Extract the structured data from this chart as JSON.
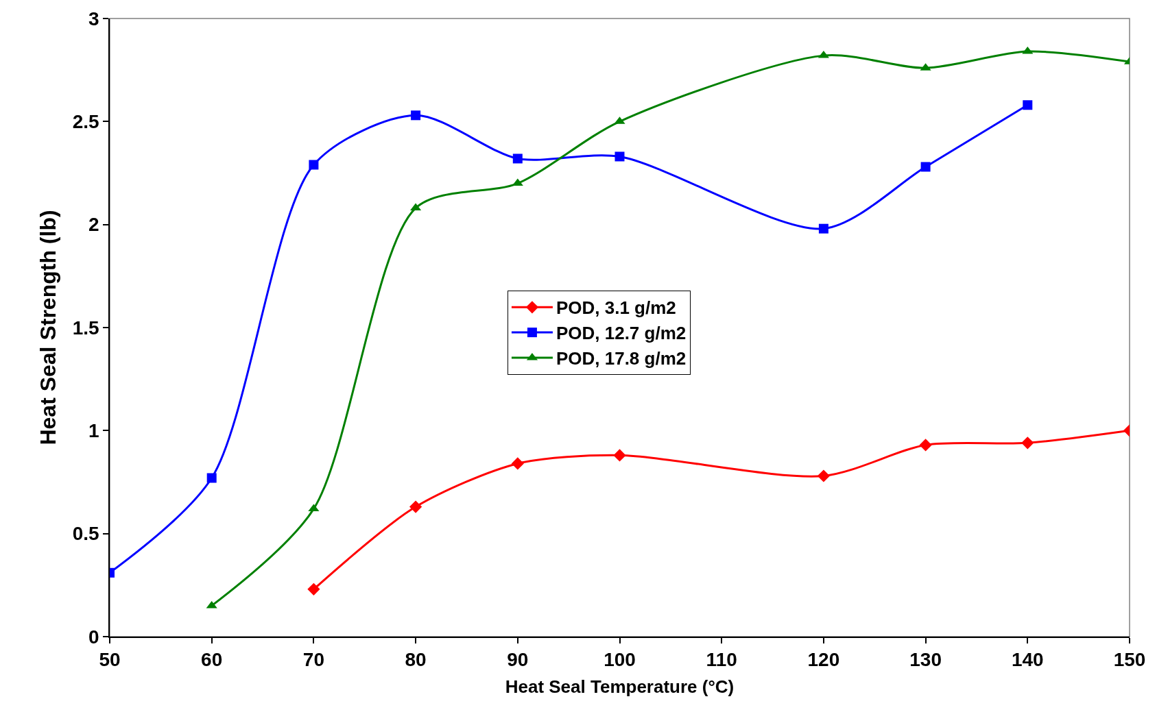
{
  "chart_data": {
    "type": "line",
    "xlabel": "Heat Seal Temperature (°C)",
    "ylabel": "Heat Seal Strength (lb)",
    "x": [
      50,
      60,
      70,
      80,
      90,
      100,
      120,
      130,
      140,
      150
    ],
    "series": [
      {
        "name": "POD, 3.1 g/m2",
        "color": "#ff0000",
        "marker": "diamond",
        "values": [
          null,
          null,
          0.23,
          0.63,
          0.84,
          0.88,
          0.78,
          0.93,
          0.94,
          1.0
        ]
      },
      {
        "name": "POD, 12.7 g/m2",
        "color": "#0000ff",
        "marker": "square",
        "values": [
          0.31,
          0.77,
          2.29,
          2.53,
          2.32,
          2.33,
          1.98,
          2.28,
          2.58,
          null
        ]
      },
      {
        "name": "POD, 17.8 g/m2",
        "color": "#008000",
        "marker": "triangle",
        "values": [
          null,
          0.15,
          0.62,
          2.08,
          2.2,
          2.5,
          2.82,
          2.76,
          2.84,
          2.79
        ]
      }
    ],
    "xlim": [
      50,
      150
    ],
    "xticks": [
      50,
      60,
      70,
      80,
      90,
      100,
      110,
      120,
      130,
      140,
      150
    ],
    "ylim": [
      0,
      3
    ],
    "yticks": [
      0,
      0.5,
      1,
      1.5,
      2,
      2.5,
      3
    ],
    "grid": false,
    "legend": "center"
  }
}
